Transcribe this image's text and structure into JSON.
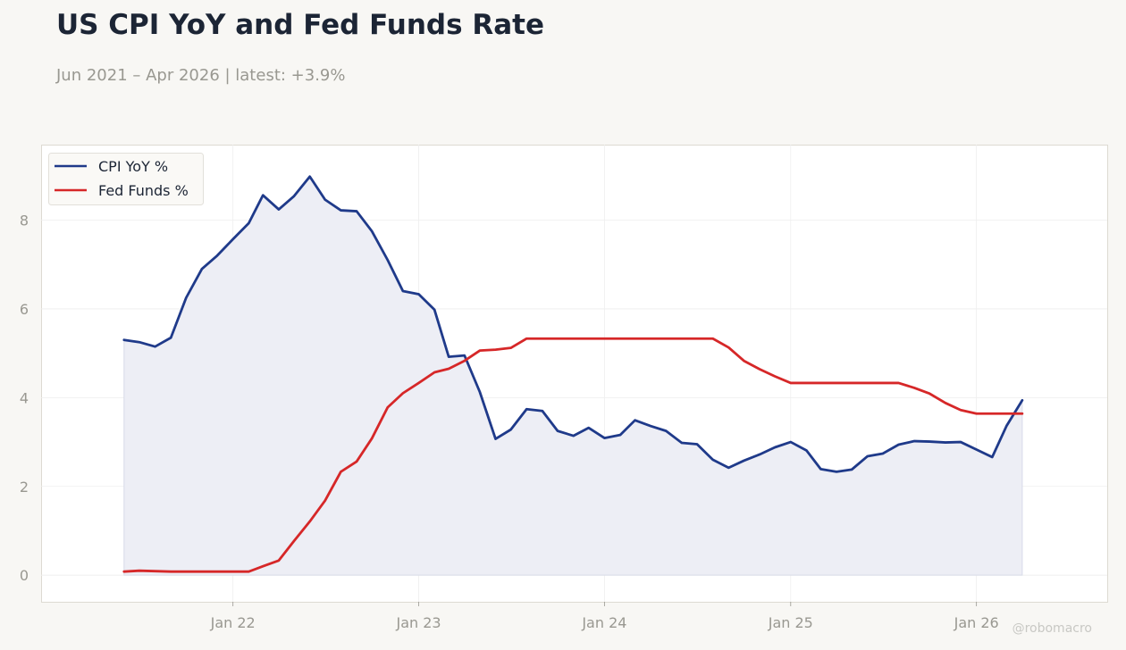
{
  "header": {
    "title": "US CPI YoY and Fed Funds Rate",
    "subtitle": "Jun 2021 – Apr 2026 | latest: +3.9%"
  },
  "watermark": "@robomacro",
  "colors": {
    "cpi": "#1f3a8a",
    "fed": "#d62728",
    "cpi_fill": "#edeef5",
    "grid": "#eeeeee",
    "axis_text": "#999891",
    "plot_border": "#dddad2",
    "background": "#f8f7f4"
  },
  "chart_data": {
    "type": "line",
    "title": "US CPI YoY and Fed Funds Rate",
    "x_start": "2021-06",
    "frequency": "monthly",
    "x": [
      "2021-06",
      "2021-07",
      "2021-08",
      "2021-09",
      "2021-10",
      "2021-11",
      "2021-12",
      "2022-01",
      "2022-02",
      "2022-03",
      "2022-04",
      "2022-05",
      "2022-06",
      "2022-07",
      "2022-08",
      "2022-09",
      "2022-10",
      "2022-11",
      "2022-12",
      "2023-01",
      "2023-02",
      "2023-03",
      "2023-04",
      "2023-05",
      "2023-06",
      "2023-07",
      "2023-08",
      "2023-09",
      "2023-10",
      "2023-11",
      "2023-12",
      "2024-01",
      "2024-02",
      "2024-03",
      "2024-04",
      "2024-05",
      "2024-06",
      "2024-07",
      "2024-08",
      "2024-09",
      "2024-10",
      "2024-11",
      "2024-12",
      "2025-01",
      "2025-02",
      "2025-03",
      "2025-04",
      "2025-05",
      "2025-06",
      "2025-07",
      "2025-08",
      "2025-09",
      "2025-10",
      "2025-11",
      "2025-12",
      "2026-01",
      "2026-02",
      "2026-03",
      "2026-04"
    ],
    "series": [
      {
        "name": "CPI YoY %",
        "color": "#1f3a8a",
        "fill": true,
        "values": [
          5.3,
          5.25,
          5.15,
          5.35,
          6.25,
          6.9,
          7.2,
          7.57,
          7.93,
          8.56,
          8.24,
          8.54,
          8.98,
          8.46,
          8.22,
          8.2,
          7.75,
          7.1,
          6.4,
          6.33,
          5.98,
          4.92,
          4.95,
          4.13,
          3.07,
          3.28,
          3.74,
          3.7,
          3.25,
          3.14,
          3.32,
          3.09,
          3.16,
          3.49,
          3.36,
          3.25,
          2.98,
          2.95,
          2.6,
          2.42,
          2.58,
          2.72,
          2.88,
          3.0,
          2.81,
          2.39,
          2.33,
          2.38,
          2.68,
          2.74,
          2.94,
          3.02,
          3.01,
          2.99,
          3.0,
          2.83,
          2.66,
          3.36,
          3.94
        ]
      },
      {
        "name": "Fed Funds %",
        "color": "#d62728",
        "fill": false,
        "values": [
          0.08,
          0.1,
          0.09,
          0.08,
          0.08,
          0.08,
          0.08,
          0.08,
          0.08,
          0.2,
          0.33,
          0.77,
          1.21,
          1.68,
          2.33,
          2.56,
          3.08,
          3.78,
          4.1,
          4.33,
          4.57,
          4.65,
          4.83,
          5.06,
          5.08,
          5.12,
          5.33,
          5.33,
          5.33,
          5.33,
          5.33,
          5.33,
          5.33,
          5.33,
          5.33,
          5.33,
          5.33,
          5.33,
          5.33,
          5.13,
          4.83,
          4.64,
          4.48,
          4.33,
          4.33,
          4.33,
          4.33,
          4.33,
          4.33,
          4.33,
          4.33,
          4.22,
          4.09,
          3.88,
          3.72,
          3.64,
          3.64,
          3.64,
          3.64
        ]
      }
    ],
    "x_ticks": [
      {
        "label": "Jan 22",
        "date": "2022-01"
      },
      {
        "label": "Jan 23",
        "date": "2023-01"
      },
      {
        "label": "Jan 24",
        "date": "2024-01"
      },
      {
        "label": "Jan 25",
        "date": "2025-01"
      },
      {
        "label": "Jan 26",
        "date": "2026-01"
      }
    ],
    "y_ticks": [
      0,
      2,
      4,
      6,
      8
    ],
    "ylim": [
      -0.6,
      9.7
    ],
    "xlim": [
      "2020-12-20",
      "2026-09-15"
    ],
    "grid": true,
    "legend_position": "top-left",
    "xlabel": "",
    "ylabel": ""
  }
}
